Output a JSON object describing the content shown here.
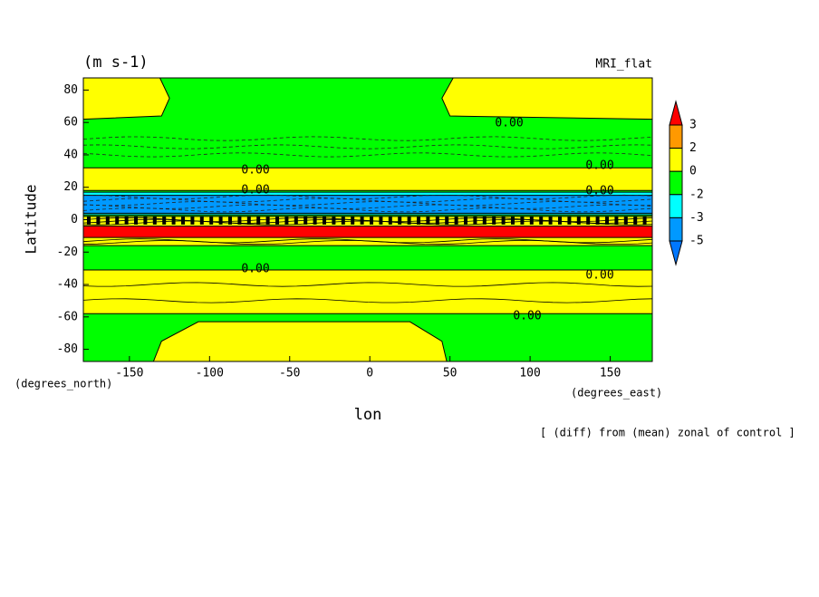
{
  "chart_data": {
    "type": "contour",
    "title": "MRI_flat",
    "units": "(m s-1)",
    "xlabel": "lon",
    "ylabel": "Latitude",
    "xunit": "(degrees_east)",
    "yunit": "(degrees_north)",
    "note": "[ (diff) from (mean) zonal of control ]",
    "xlim": [
      -178.75,
      176.25
    ],
    "ylim": [
      -87.5,
      87.5
    ],
    "xticks": [
      -150,
      -100,
      -50,
      0,
      50,
      100,
      150
    ],
    "yticks": [
      80,
      60,
      40,
      20,
      0,
      -20,
      -40,
      -60,
      -80
    ],
    "background": "#ffff00",
    "regions": [
      {
        "color": "#00ff00",
        "lon": [
          -131,
          -125,
          -130,
          -178.75,
          -178.75,
          176.25,
          176.25,
          50,
          45,
          52
        ],
        "lat": [
          87.5,
          75,
          64,
          62,
          32,
          32,
          62,
          64,
          75,
          87.5
        ]
      },
      {
        "color": "#00ff00",
        "lon": [
          -178.75,
          176.25,
          176.25,
          -178.75
        ],
        "lat": [
          18,
          18,
          2,
          2
        ]
      },
      {
        "color": "#00ffff",
        "lon": [
          -178.75,
          176.25,
          176.25,
          -178.75
        ],
        "lat": [
          17,
          17,
          3,
          3
        ]
      },
      {
        "color": "#0099ff",
        "lon": [
          -178.75,
          176.25,
          176.25,
          -178.75
        ],
        "lat": [
          15,
          15,
          4,
          4
        ]
      },
      {
        "color": "#ff0000",
        "lon": [
          -178.75,
          176.25,
          176.25,
          -178.75
        ],
        "lat": [
          -4,
          -4,
          -11,
          -11
        ]
      },
      {
        "color": "#00ff00",
        "lon": [
          -178.75,
          176.25,
          176.25,
          -178.75
        ],
        "lat": [
          -16,
          -16,
          -31,
          -31
        ]
      },
      {
        "color": "#00ff00",
        "lon": [
          -178.75,
          176.25,
          176.25,
          -178.75
        ],
        "lat": [
          -58,
          -58,
          -87.5,
          -87.5
        ]
      },
      {
        "color": "#ffff00",
        "lon": [
          -107,
          25,
          45,
          48,
          -135,
          -130
        ],
        "lat": [
          -63,
          -63,
          -75,
          -87.5,
          -87.5,
          -75
        ]
      }
    ],
    "contour_labels": [
      "0.00",
      "0.00",
      "0.00",
      "0.00",
      "0.00",
      "0.00",
      "0.00",
      "0.00"
    ],
    "colorbar": {
      "levels": [
        3,
        2,
        0,
        -2,
        -3,
        -5
      ],
      "colors": [
        "#ff0000",
        "#ff9900",
        "#ffff00",
        "#00ff00",
        "#00ffff",
        "#0099ff",
        "#0077ff"
      ]
    }
  }
}
